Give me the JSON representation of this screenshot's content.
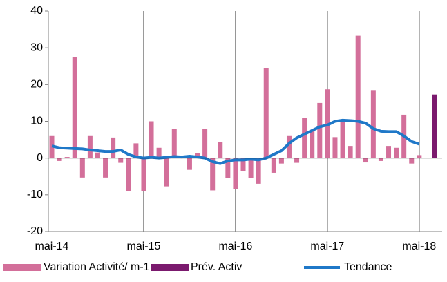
{
  "chart_data": {
    "type": "bar",
    "categories": [
      "mai-14",
      null,
      null,
      null,
      null,
      null,
      null,
      null,
      null,
      null,
      null,
      null,
      "mai-15",
      null,
      null,
      null,
      null,
      null,
      null,
      null,
      null,
      null,
      null,
      null,
      "mai-16",
      null,
      null,
      null,
      null,
      null,
      null,
      null,
      null,
      null,
      null,
      null,
      "mai-17",
      null,
      null,
      null,
      null,
      null,
      null,
      null,
      null,
      null,
      null,
      null,
      "mai-18",
      null,
      null
    ],
    "series": [
      {
        "name": "Variation Activité/ m-1",
        "color": "#d36f9a",
        "kind": "bar",
        "values": [
          6,
          -0.8,
          0.3,
          27.5,
          -5.3,
          6,
          1.5,
          -5.3,
          5.6,
          -1.3,
          -9,
          4,
          -9,
          10,
          2.8,
          -7.7,
          8,
          0.5,
          -3.2,
          1.3,
          8,
          -8.8,
          4.3,
          -5.5,
          -8.4,
          -3.5,
          -5.5,
          -7,
          24.5,
          -4,
          -1.5,
          6,
          -1.3,
          11,
          7.5,
          15,
          18.7,
          5.7,
          10,
          3.3,
          33.3,
          -1.2,
          18.5,
          -0.8,
          3.3,
          2.8,
          11.8,
          -1.5,
          0.8,
          null,
          null
        ]
      },
      {
        "name": "Prév. Activ",
        "color": "#7b1a6e",
        "kind": "bar",
        "values": [
          null,
          null,
          null,
          null,
          null,
          null,
          null,
          null,
          null,
          null,
          null,
          null,
          null,
          null,
          null,
          null,
          null,
          null,
          null,
          null,
          null,
          null,
          null,
          null,
          null,
          null,
          null,
          null,
          null,
          null,
          null,
          null,
          null,
          null,
          null,
          null,
          null,
          null,
          null,
          null,
          null,
          null,
          null,
          null,
          null,
          null,
          null,
          null,
          null,
          null,
          17.3
        ]
      },
      {
        "name": "Tendance",
        "color": "#1f78c8",
        "kind": "line",
        "values": [
          3.3,
          2.8,
          2.7,
          2.6,
          2.5,
          2.2,
          2.0,
          1.8,
          1.8,
          2.2,
          1.0,
          0.3,
          0,
          0.2,
          0,
          0.2,
          0.4,
          0.3,
          0.5,
          0.3,
          0,
          -1,
          -1.5,
          -0.8,
          -0.5,
          -0.5,
          -0.3,
          -0.5,
          0,
          1,
          2,
          4,
          5.5,
          6.5,
          7.5,
          8.5,
          9,
          10,
          10.3,
          10.2,
          10,
          9.5,
          8,
          7.3,
          7.2,
          7.2,
          6,
          4.5,
          3.8,
          null,
          null
        ]
      }
    ],
    "ylim": [
      -20,
      40
    ],
    "yticks": [
      -20,
      -10,
      0,
      10,
      20,
      30,
      40
    ],
    "vgrid": true,
    "legend": "bottom"
  }
}
